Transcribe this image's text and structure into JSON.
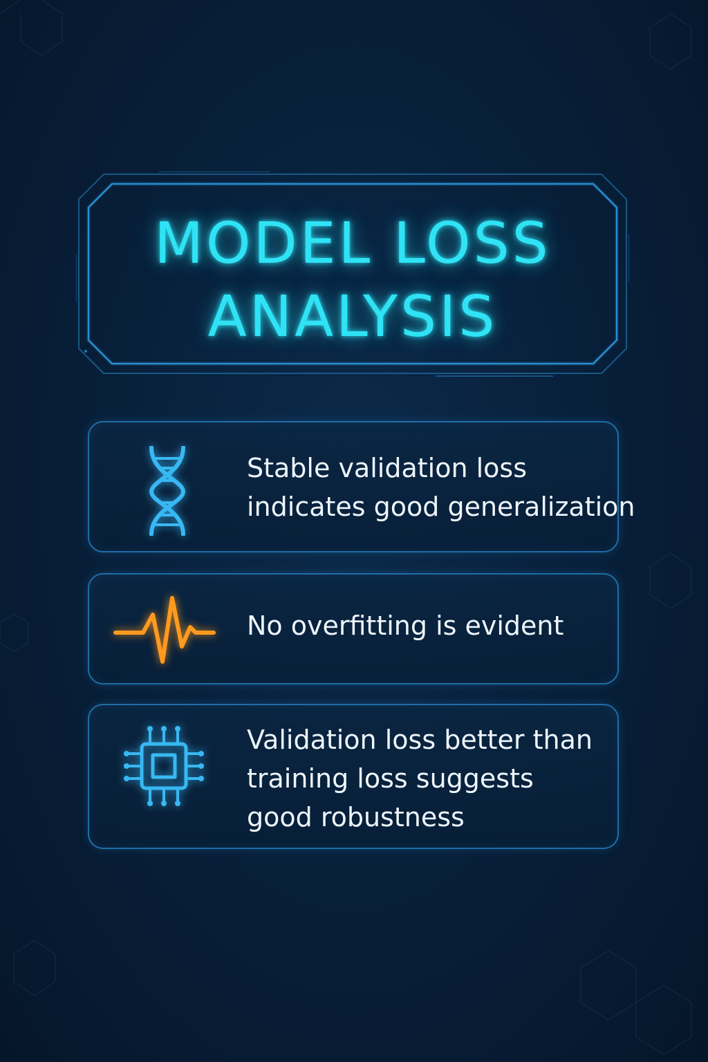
{
  "title": {
    "line1": "MODEL LOSS",
    "line2": "ANALYSIS"
  },
  "colors": {
    "accent_cyan": "#2fe3f5",
    "icon_blue": "#38b8f2",
    "icon_orange": "#ff9a1f",
    "card_border": "#1f6ea6",
    "background": "#08203b",
    "text": "#eef5fb"
  },
  "cards": [
    {
      "icon": "dna-icon",
      "lines": [
        "Stable validation loss",
        "indicates good generalization"
      ]
    },
    {
      "icon": "heartbeat-icon",
      "lines": [
        "No overfitting is evident"
      ]
    },
    {
      "icon": "chip-icon",
      "lines": [
        "Validation loss better than",
        "training loss suggests",
        "good robustness"
      ]
    }
  ]
}
